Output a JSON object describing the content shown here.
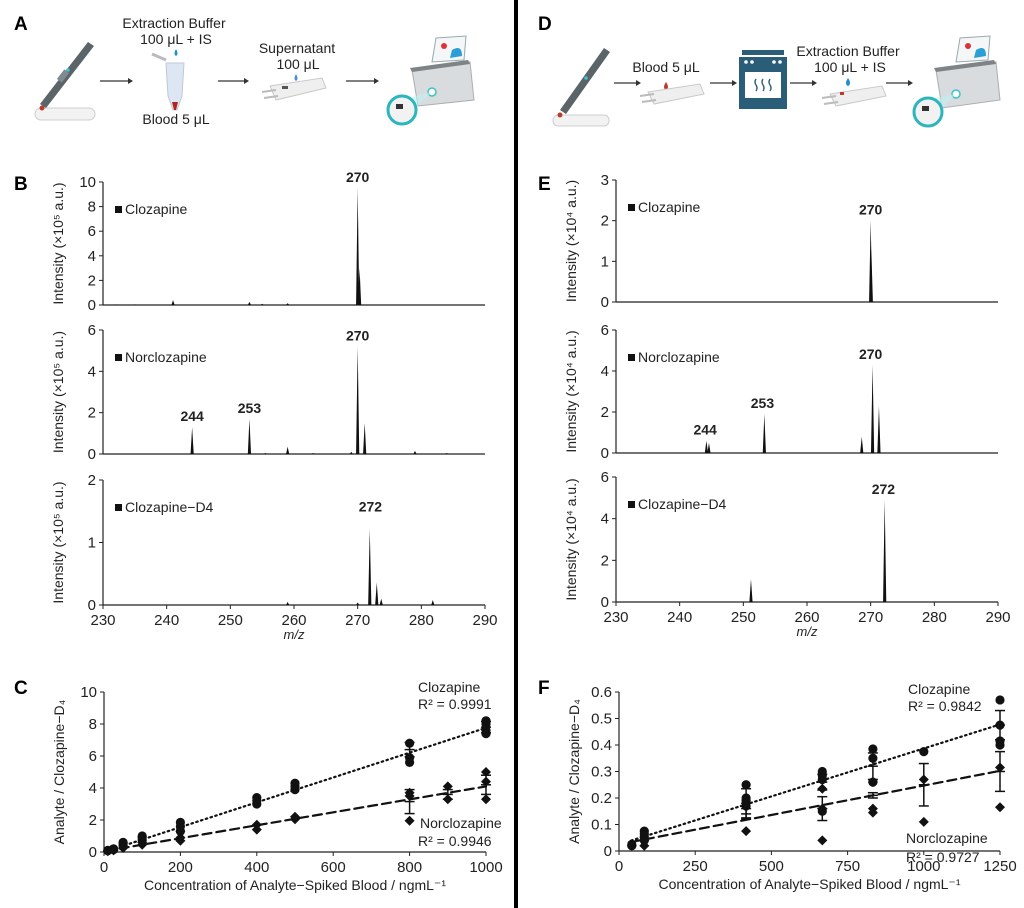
{
  "panels": {
    "A": {
      "letter": "A",
      "steps": [
        {
          "icon": "lancing-device-icon"
        },
        {
          "icon": "sample-tube-icon",
          "label_top_1": "Extraction Buffer",
          "label_top_2": "100 μL + IS",
          "label_bottom": "Blood 5 μL"
        },
        {
          "icon": "sample-cartridge-icon",
          "label_top_1": "Supernatant",
          "label_top_2": "100 μL"
        },
        {
          "icon": "mass-spectrometer-icon"
        }
      ]
    },
    "D": {
      "letter": "D",
      "steps": [
        {
          "icon": "lancing-device-icon"
        },
        {
          "icon": "sample-cartridge-icon",
          "label_top_1": "Blood 5 μL"
        },
        {
          "icon": "oven-icon"
        },
        {
          "icon": "sample-cartridge-icon",
          "label_top_1": "Extraction Buffer",
          "label_top_2": "100 μL + IS"
        },
        {
          "icon": "mass-spectrometer-icon"
        }
      ]
    },
    "B": {
      "letter": "B"
    },
    "C": {
      "letter": "C"
    },
    "E": {
      "letter": "E"
    },
    "F": {
      "letter": "F"
    }
  },
  "chart_data": [
    {
      "id": "B1",
      "panel": "B",
      "type": "bar",
      "subtype": "mass-spectrum",
      "legend": "Clozapine",
      "ylabel": "Intensity (×10⁵ a.u.)",
      "ylabel_exp": "5",
      "xlabel": "",
      "xlim": [
        230,
        290
      ],
      "ylim": [
        0,
        10
      ],
      "yticks": [
        0,
        2,
        4,
        6,
        8,
        10
      ],
      "show_xticks": false,
      "peaks": [
        [
          232,
          0.05
        ],
        [
          235,
          0.05
        ],
        [
          241,
          0.4
        ],
        [
          253,
          0.25
        ],
        [
          255,
          0.1
        ],
        [
          259,
          0.15
        ],
        [
          270,
          9.5
        ],
        [
          270.3,
          3.0
        ]
      ],
      "annotations": [
        {
          "x": 270,
          "y": 9.5,
          "text": "270"
        }
      ]
    },
    {
      "id": "B2",
      "panel": "B",
      "type": "bar",
      "subtype": "mass-spectrum",
      "legend": "Norclozapine",
      "ylabel": "Intensity (×10⁵ a.u.)",
      "ylabel_exp": "5",
      "xlabel": "",
      "xlim": [
        230,
        290
      ],
      "ylim": [
        0,
        6
      ],
      "yticks": [
        0,
        2,
        4,
        6
      ],
      "show_xticks": false,
      "peaks": [
        [
          244,
          1.3
        ],
        [
          253,
          1.7
        ],
        [
          255.5,
          0.05
        ],
        [
          259,
          0.35
        ],
        [
          263,
          0.05
        ],
        [
          269,
          0.1
        ],
        [
          270,
          5.2
        ],
        [
          271.1,
          1.5
        ],
        [
          279,
          0.15
        ],
        [
          284,
          0.05
        ]
      ],
      "annotations": [
        {
          "x": 244,
          "y": 1.3,
          "text": "244"
        },
        {
          "x": 253,
          "y": 1.7,
          "text": "253"
        },
        {
          "x": 270,
          "y": 5.2,
          "text": "270"
        }
      ]
    },
    {
      "id": "B3",
      "panel": "B",
      "type": "bar",
      "subtype": "mass-spectrum",
      "legend": "Clozapine−D4",
      "ylabel": "Intensity (×10⁵ a.u.)",
      "ylabel_exp": "5",
      "xlabel": "m/z",
      "xlim": [
        230,
        290
      ],
      "ylim": [
        0,
        2
      ],
      "yticks": [
        0,
        1,
        2
      ],
      "xticks": [
        230,
        240,
        250,
        260,
        270,
        280,
        290
      ],
      "show_xticks": true,
      "peaks": [
        [
          259,
          0.05
        ],
        [
          270,
          0.04
        ],
        [
          271.9,
          1.22
        ],
        [
          273,
          0.36
        ],
        [
          273.7,
          0.1
        ],
        [
          281.8,
          0.08
        ]
      ],
      "annotations": [
        {
          "x": 272,
          "y": 1.4,
          "text": "272"
        }
      ]
    },
    {
      "id": "E1",
      "panel": "E",
      "type": "bar",
      "subtype": "mass-spectrum",
      "legend": "Clozapine",
      "ylabel": "Intensity (×10⁴ a.u.)",
      "ylabel_exp": "4",
      "xlabel": "",
      "xlim": [
        230,
        290
      ],
      "ylim": [
        0,
        3
      ],
      "yticks": [
        0,
        1,
        2,
        3
      ],
      "show_xticks": false,
      "peaks": [
        [
          270,
          2.0
        ],
        [
          270.1,
          1.3
        ]
      ],
      "annotations": [
        {
          "x": 270,
          "y": 2.0,
          "text": "270"
        }
      ]
    },
    {
      "id": "E2",
      "panel": "E",
      "type": "bar",
      "subtype": "mass-spectrum",
      "legend": "Norclozapine",
      "ylabel": "Intensity (×10⁴ a.u.)",
      "ylabel_exp": "4",
      "xlabel": "",
      "xlim": [
        230,
        290
      ],
      "ylim": [
        0,
        6
      ],
      "yticks": [
        0,
        2,
        4,
        6
      ],
      "show_xticks": false,
      "peaks": [
        [
          244.2,
          0.6
        ],
        [
          244.6,
          0.5
        ],
        [
          253.3,
          1.9
        ],
        [
          268.6,
          0.8
        ],
        [
          270.3,
          4.3
        ],
        [
          271.3,
          2.3
        ]
      ],
      "annotations": [
        {
          "x": 244,
          "y": 0.6,
          "text": "244"
        },
        {
          "x": 253,
          "y": 1.9,
          "text": "253"
        },
        {
          "x": 270,
          "y": 4.3,
          "text": "270"
        }
      ]
    },
    {
      "id": "E3",
      "panel": "E",
      "type": "bar",
      "subtype": "mass-spectrum",
      "legend": "Clozapine−D4",
      "ylabel": "Intensity (×10⁴ a.u.)",
      "ylabel_exp": "4",
      "xlabel": "m/z",
      "xlim": [
        230,
        290
      ],
      "ylim": [
        0,
        6
      ],
      "yticks": [
        0,
        2,
        4,
        6
      ],
      "xticks": [
        230,
        240,
        250,
        260,
        270,
        280,
        290
      ],
      "show_xticks": true,
      "peaks": [
        [
          251.2,
          1.1
        ],
        [
          272.2,
          4.9
        ]
      ],
      "annotations": [
        {
          "x": 272,
          "y": 4.9,
          "text": "272"
        }
      ]
    },
    {
      "id": "C",
      "panel": "C",
      "type": "scatter",
      "xlabel": "Concentration of Analyte−Spiked Blood / ngmL⁻¹",
      "ylabel": "Analyte / Clozapine−D₄",
      "xlim": [
        0,
        1000
      ],
      "ylim": [
        0,
        10
      ],
      "xticks": [
        0,
        200,
        400,
        600,
        800,
        1000
      ],
      "yticks": [
        0,
        2,
        4,
        6,
        8,
        10
      ],
      "series": [
        {
          "name": "Clozapine",
          "r2_label": "R² = 0.9991",
          "marker": "circle",
          "line": "dotted",
          "fit": {
            "slope": 0.00776,
            "intercept": 0.0
          },
          "points": [
            [
              10,
              0.08
            ],
            [
              10,
              0.1
            ],
            [
              25,
              0.15
            ],
            [
              25,
              0.2
            ],
            [
              50,
              0.4
            ],
            [
              50,
              0.55
            ],
            [
              50,
              0.6
            ],
            [
              100,
              0.75
            ],
            [
              100,
              0.9
            ],
            [
              100,
              1.0
            ],
            [
              200,
              1.3
            ],
            [
              200,
              1.6
            ],
            [
              200,
              1.85
            ],
            [
              400,
              3.0
            ],
            [
              400,
              3.2
            ],
            [
              400,
              3.4
            ],
            [
              500,
              3.9
            ],
            [
              500,
              4.1
            ],
            [
              500,
              4.3
            ],
            [
              800,
              5.6
            ],
            [
              800,
              5.9
            ],
            [
              800,
              6.8
            ],
            [
              1000,
              7.4
            ],
            [
              1000,
              7.6
            ],
            [
              1000,
              8.0
            ],
            [
              1000,
              8.2
            ]
          ],
          "error_bars": [
            [
              800,
              6.4,
              0.45
            ],
            [
              1000,
              7.8,
              0.35
            ]
          ]
        },
        {
          "name": "Norclozapine",
          "r2_label": "R² = 0.9946",
          "marker": "diamond",
          "line": "dashed",
          "fit": {
            "slope": 0.00405,
            "intercept": 0.05
          },
          "points": [
            [
              10,
              0.05
            ],
            [
              25,
              0.1
            ],
            [
              50,
              0.25
            ],
            [
              100,
              0.45
            ],
            [
              100,
              0.6
            ],
            [
              200,
              0.7
            ],
            [
              200,
              0.9
            ],
            [
              200,
              1.3
            ],
            [
              400,
              1.4
            ],
            [
              400,
              1.7
            ],
            [
              500,
              2.05
            ],
            [
              500,
              2.2
            ],
            [
              800,
              1.95
            ],
            [
              800,
              3.5
            ],
            [
              800,
              3.7
            ],
            [
              900,
              3.3
            ],
            [
              900,
              4.1
            ],
            [
              1000,
              3.3
            ],
            [
              1000,
              4.4
            ],
            [
              1000,
              5.0
            ]
          ],
          "error_bars": [
            [
              800,
              3.15,
              0.75
            ],
            [
              900,
              3.6,
              0.3
            ],
            [
              1000,
              4.2,
              0.6
            ]
          ]
        }
      ]
    },
    {
      "id": "F",
      "panel": "F",
      "type": "scatter",
      "xlabel": "Concentration of Analyte−Spiked Blood / ngmL⁻¹",
      "ylabel": "Analyte / Clozapine−D₄",
      "xlim": [
        0,
        1250
      ],
      "ylim": [
        0,
        0.6
      ],
      "xticks": [
        0,
        250,
        500,
        750,
        1000,
        1250
      ],
      "yticks": [
        0,
        0.1,
        0.2,
        0.3,
        0.4,
        0.5,
        0.6
      ],
      "series": [
        {
          "name": "Clozapine",
          "r2_label": "R² = 0.9842",
          "marker": "circle",
          "line": "dotted",
          "fit": {
            "slope": 0.000362,
            "intercept": 0.025
          },
          "points": [
            [
              42,
              0.02
            ],
            [
              42,
              0.025
            ],
            [
              83,
              0.04
            ],
            [
              83,
              0.055
            ],
            [
              83,
              0.065
            ],
            [
              83,
              0.075
            ],
            [
              417,
              0.17
            ],
            [
              417,
              0.19
            ],
            [
              417,
              0.2
            ],
            [
              417,
              0.25
            ],
            [
              667,
              0.15
            ],
            [
              667,
              0.27
            ],
            [
              667,
              0.285
            ],
            [
              667,
              0.3
            ],
            [
              833,
              0.26
            ],
            [
              833,
              0.35
            ],
            [
              833,
              0.385
            ],
            [
              1000,
              0.375
            ],
            [
              1250,
              0.4
            ],
            [
              1250,
              0.415
            ],
            [
              1250,
              0.475
            ],
            [
              1250,
              0.57
            ]
          ],
          "error_bars": [
            [
              417,
              0.18,
              0.055
            ],
            [
              667,
              0.26,
              0.03
            ],
            [
              833,
              0.32,
              0.05
            ],
            [
              1250,
              0.475,
              0.055
            ]
          ]
        },
        {
          "name": "Norclozapine",
          "r2_label": "R² = 0.9727",
          "marker": "diamond",
          "line": "dashed",
          "fit": {
            "slope": 0.000222,
            "intercept": 0.025
          },
          "points": [
            [
              42,
              0.02
            ],
            [
              83,
              0.02
            ],
            [
              83,
              0.04
            ],
            [
              417,
              0.075
            ],
            [
              417,
              0.18
            ],
            [
              667,
              0.04
            ],
            [
              667,
              0.16
            ],
            [
              667,
              0.235
            ],
            [
              833,
              0.145
            ],
            [
              833,
              0.16
            ],
            [
              833,
              0.26
            ],
            [
              1000,
              0.11
            ],
            [
              1000,
              0.27
            ],
            [
              1250,
              0.165
            ],
            [
              1250,
              0.315
            ]
          ],
          "error_bars": [
            [
              417,
              0.14,
              0.02
            ],
            [
              667,
              0.16,
              0.045
            ],
            [
              833,
              0.21,
              0.01
            ],
            [
              1000,
              0.25,
              0.08
            ],
            [
              1250,
              0.3,
              0.075
            ]
          ]
        }
      ]
    }
  ]
}
